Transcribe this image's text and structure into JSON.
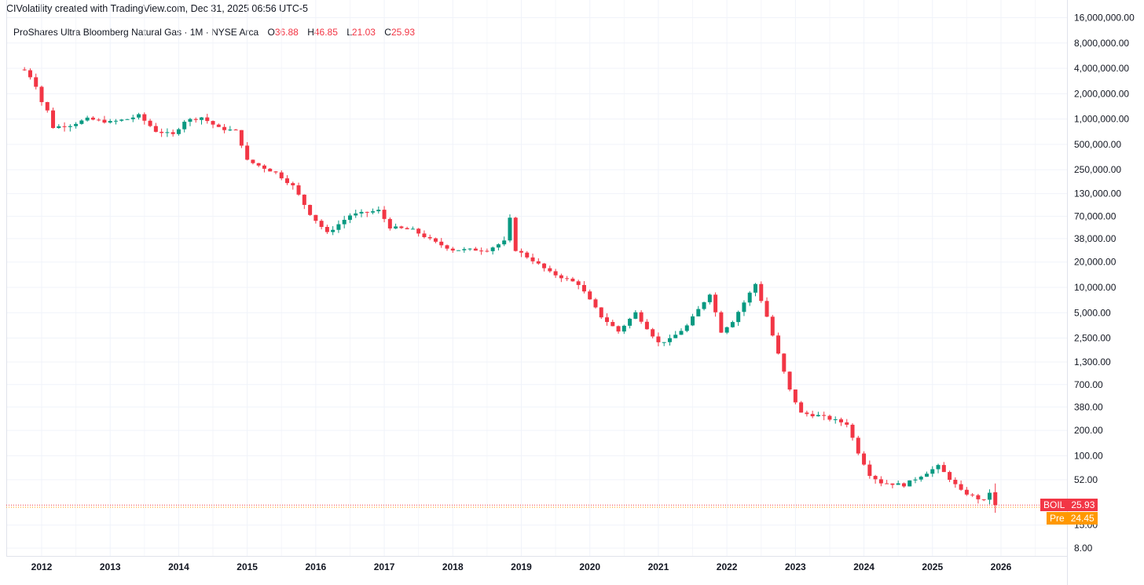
{
  "header": {
    "credit": "CIVolatility created with TradingView.com, Dec 31, 2025 06:56 UTC-5"
  },
  "legend": {
    "instrument": "ProShares Ultra Bloomberg Natural Gas · 1M · NYSE Arca",
    "open_key": "O",
    "open": "36.88",
    "high_key": "H",
    "high": "46.85",
    "low_key": "L",
    "low": "21.03",
    "close_key": "C",
    "close": "25.93"
  },
  "tags": {
    "last": {
      "symbol": "BOIL",
      "value": "25.93",
      "color": "#f23645"
    },
    "pre": {
      "symbol": "Pre",
      "value": "24.45",
      "color": "#ff9800"
    }
  },
  "colors": {
    "up": "#089981",
    "down": "#f23645",
    "grid": "#f0f3fa"
  },
  "chart_data": {
    "type": "candlestick",
    "scale": "log",
    "grid": true,
    "x_labels": [
      "2012",
      "2013",
      "2014",
      "2015",
      "2016",
      "2017",
      "2018",
      "2019",
      "2020",
      "2021",
      "2022",
      "2023",
      "2024",
      "2025",
      "2026"
    ],
    "y_tick_labels": [
      {
        "label": "16,000,000.00",
        "value": 16000000
      },
      {
        "label": "8,000,000.00",
        "value": 8000000
      },
      {
        "label": "4,000,000.00",
        "value": 4000000
      },
      {
        "label": "2,000,000.00",
        "value": 2000000
      },
      {
        "label": "1,000,000.00",
        "value": 1000000
      },
      {
        "label": "500,000.00",
        "value": 500000
      },
      {
        "label": "250,000.00",
        "value": 250000
      },
      {
        "label": "130,000.00",
        "value": 130000
      },
      {
        "label": "70,000.00",
        "value": 70000
      },
      {
        "label": "38,000.00",
        "value": 38000
      },
      {
        "label": "20,000.00",
        "value": 20000
      },
      {
        "label": "10,000.00",
        "value": 10000
      },
      {
        "label": "5,000.00",
        "value": 5000
      },
      {
        "label": "2,500.00",
        "value": 2500
      },
      {
        "label": "1,300.00",
        "value": 1300
      },
      {
        "label": "700.00",
        "value": 700
      },
      {
        "label": "380.00",
        "value": 380
      },
      {
        "label": "200.00",
        "value": 200
      },
      {
        "label": "100.00",
        "value": 100
      },
      {
        "label": "52.00",
        "value": 52
      },
      {
        "label": "15.00",
        "value": 15
      },
      {
        "label": "8.00",
        "value": 8
      }
    ],
    "last_value": 25.93,
    "pre_value": 24.45,
    "waypoints": [
      {
        "date": "2011-10",
        "close": 3800000
      },
      {
        "date": "2011-11",
        "close": 3200000
      },
      {
        "date": "2011-12",
        "close": 2500000
      },
      {
        "date": "2012-01",
        "close": 1600000
      },
      {
        "date": "2012-02",
        "close": 1250000
      },
      {
        "date": "2012-03",
        "close": 800000
      },
      {
        "date": "2012-06",
        "close": 850000
      },
      {
        "date": "2012-09",
        "close": 1000000
      },
      {
        "date": "2013-01",
        "close": 920000
      },
      {
        "date": "2013-04",
        "close": 1000000
      },
      {
        "date": "2013-06",
        "close": 1100000
      },
      {
        "date": "2013-09",
        "close": 720000
      },
      {
        "date": "2013-12",
        "close": 650000
      },
      {
        "date": "2014-02",
        "close": 950000
      },
      {
        "date": "2014-05",
        "close": 1050000
      },
      {
        "date": "2014-08",
        "close": 780000
      },
      {
        "date": "2014-11",
        "close": 720000
      },
      {
        "date": "2014-12",
        "close": 500000
      },
      {
        "date": "2015-01",
        "close": 320000
      },
      {
        "date": "2015-06",
        "close": 230000
      },
      {
        "date": "2015-09",
        "close": 160000
      },
      {
        "date": "2015-12",
        "close": 75000
      },
      {
        "date": "2016-03",
        "close": 44000
      },
      {
        "date": "2016-07",
        "close": 72000
      },
      {
        "date": "2016-12",
        "close": 82000
      },
      {
        "date": "2017-02",
        "close": 52000
      },
      {
        "date": "2017-06",
        "close": 48000
      },
      {
        "date": "2017-10",
        "close": 34000
      },
      {
        "date": "2018-01",
        "close": 28000
      },
      {
        "date": "2018-07",
        "close": 28000
      },
      {
        "date": "2018-10",
        "close": 35000
      },
      {
        "date": "2018-11",
        "close": 65000
      },
      {
        "date": "2018-12",
        "close": 28000
      },
      {
        "date": "2019-03",
        "close": 21000
      },
      {
        "date": "2019-06",
        "close": 15000
      },
      {
        "date": "2019-11",
        "close": 11000
      },
      {
        "date": "2020-01",
        "close": 7000
      },
      {
        "date": "2020-03",
        "close": 4500
      },
      {
        "date": "2020-06",
        "close": 3000
      },
      {
        "date": "2020-09",
        "close": 5000
      },
      {
        "date": "2021-01",
        "close": 2200
      },
      {
        "date": "2021-03",
        "close": 2400
      },
      {
        "date": "2021-06",
        "close": 3500
      },
      {
        "date": "2021-10",
        "close": 8500
      },
      {
        "date": "2021-12",
        "close": 3000
      },
      {
        "date": "2022-02",
        "close": 4000
      },
      {
        "date": "2022-06",
        "close": 11000
      },
      {
        "date": "2022-08",
        "close": 4500
      },
      {
        "date": "2022-10",
        "close": 1600
      },
      {
        "date": "2022-12",
        "close": 600
      },
      {
        "date": "2023-02",
        "close": 320
      },
      {
        "date": "2023-05",
        "close": 300
      },
      {
        "date": "2023-10",
        "close": 240
      },
      {
        "date": "2023-12",
        "close": 110
      },
      {
        "date": "2024-02",
        "close": 60
      },
      {
        "date": "2024-04",
        "close": 48
      },
      {
        "date": "2024-08",
        "close": 45
      },
      {
        "date": "2025-02",
        "close": 75
      },
      {
        "date": "2025-06",
        "close": 38
      },
      {
        "date": "2025-10",
        "close": 29
      },
      {
        "date": "2025-11",
        "close": 36.88
      },
      {
        "date": "2025-12",
        "close": 25.93
      }
    ]
  }
}
